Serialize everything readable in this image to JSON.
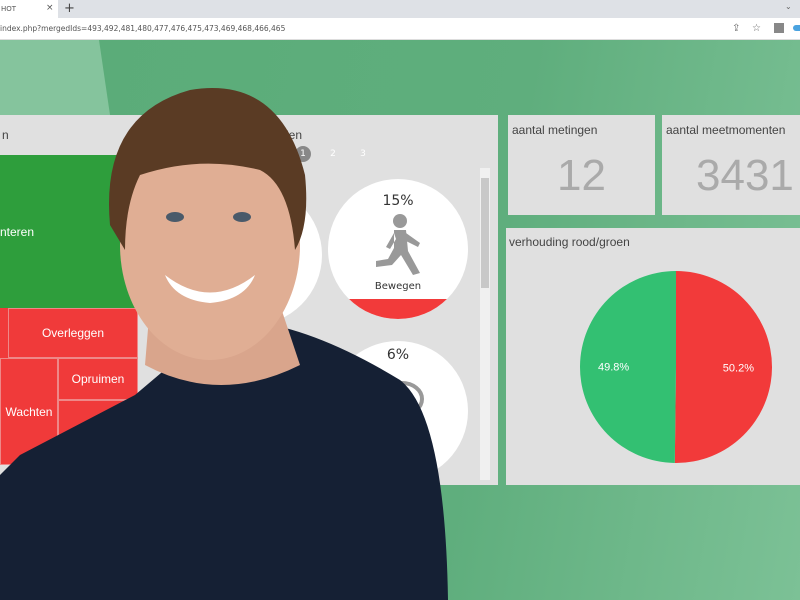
{
  "browser": {
    "tab_title": "HOT",
    "tab_close": "×",
    "new_tab": "+",
    "chevron": "⌄",
    "url": "index.php?mergedIds=493,492,481,480,477,476,475,473,469,468,466,465",
    "icons": [
      "share-icon",
      "star-icon",
      "extension-icon",
      "cloud-icon"
    ]
  },
  "treemap_panel": {
    "title": "n",
    "cells": [
      {
        "label": "nteren",
        "color": "#2e9e3c"
      },
      {
        "label": "Overleggen",
        "color": "#f03a3a"
      },
      {
        "label": "Opruimen",
        "color": "#f03a3a"
      },
      {
        "label": "Wachten",
        "color": "#f03a3a"
      }
    ]
  },
  "activity_panel": {
    "title": "rden",
    "pages": [
      "1",
      "2",
      "3"
    ],
    "active_page": "1",
    "items": [
      {
        "percent": "15%",
        "label": "Bewegen",
        "icon": "running-person-icon"
      },
      {
        "percent": "6%",
        "label": "",
        "icon": "speech-bubble-icon"
      }
    ]
  },
  "metingen": {
    "title": "aantal metingen",
    "value": "12"
  },
  "meetmomenten": {
    "title": "aantal meetmomenten",
    "value": "3431"
  },
  "chart_data": {
    "type": "pie",
    "title": "verhouding rood/groen",
    "slices": [
      {
        "label": "50.2%",
        "value": 50.2,
        "color": "#f23a3a"
      },
      {
        "label": "49.8%",
        "value": 49.8,
        "color": "#33c072"
      }
    ]
  }
}
